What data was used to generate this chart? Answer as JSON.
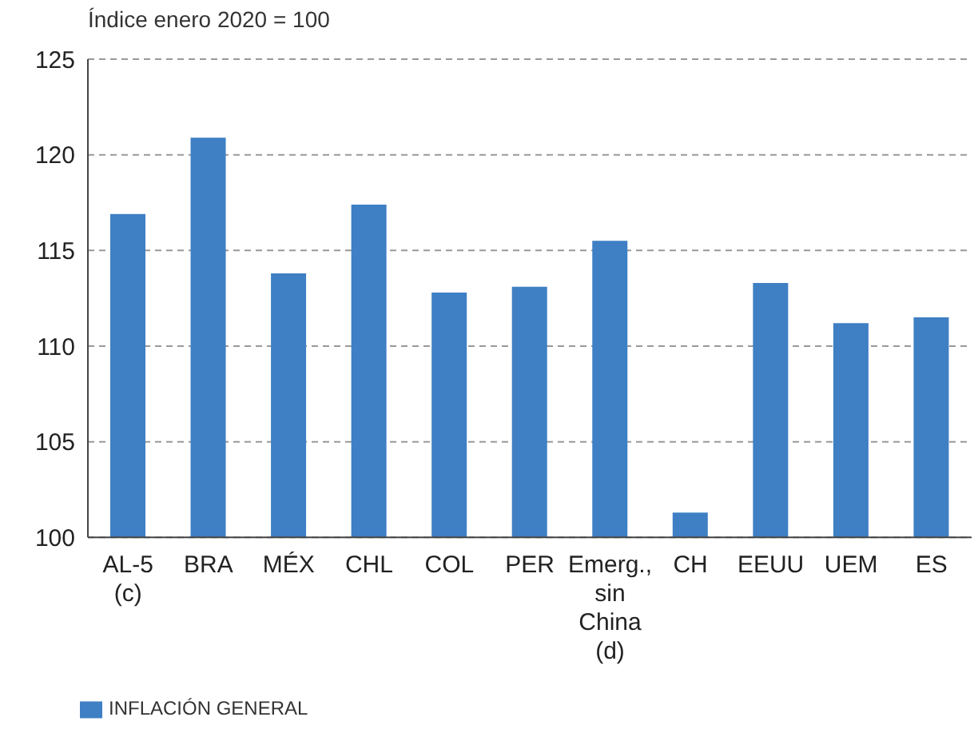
{
  "chart_data": {
    "type": "bar",
    "ylabel": "Índice enero 2020 = 100",
    "categories": [
      "AL-5\n(c)",
      "BRA",
      "MÉX",
      "CHL",
      "COL",
      "PER",
      "Emerg.,\nsin\nChina\n(d)",
      "CH",
      "EEUU",
      "UEM",
      "ES"
    ],
    "series": [
      {
        "name": "INFLACIÓN GENERAL",
        "color": "#3f7fc4",
        "values": [
          116.9,
          120.9,
          113.8,
          117.4,
          112.8,
          113.1,
          115.5,
          101.3,
          113.3,
          111.2,
          111.5
        ]
      }
    ],
    "ylim": [
      100,
      125
    ],
    "yticks": [
      100,
      105,
      110,
      115,
      120,
      125
    ],
    "grid": "y",
    "legend": "bottom left"
  }
}
